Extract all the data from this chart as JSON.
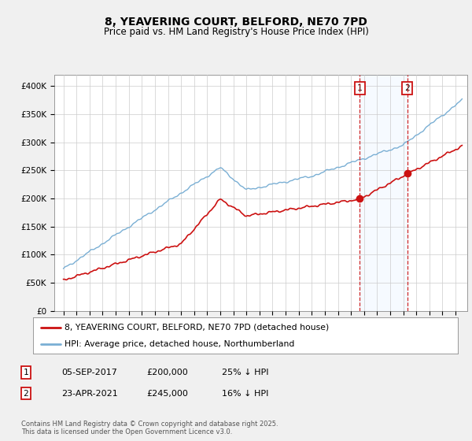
{
  "title": "8, YEAVERING COURT, BELFORD, NE70 7PD",
  "subtitle": "Price paid vs. HM Land Registry's House Price Index (HPI)",
  "ylim": [
    0,
    420000
  ],
  "yticks": [
    0,
    50000,
    100000,
    150000,
    200000,
    250000,
    300000,
    350000,
    400000
  ],
  "hpi_color": "#7aafd4",
  "price_color": "#cc1111",
  "sale1_date": "05-SEP-2017",
  "sale1_price": 200000,
  "sale1_label": "25% ↓ HPI",
  "sale1_x": 2017.67,
  "sale2_date": "23-APR-2021",
  "sale2_price": 245000,
  "sale2_label": "16% ↓ HPI",
  "sale2_x": 2021.31,
  "footnote": "Contains HM Land Registry data © Crown copyright and database right 2025.\nThis data is licensed under the Open Government Licence v3.0.",
  "legend_price_label": "8, YEAVERING COURT, BELFORD, NE70 7PD (detached house)",
  "legend_hpi_label": "HPI: Average price, detached house, Northumberland",
  "background_color": "#f0f0f0",
  "plot_bg_color": "#ffffff",
  "grid_color": "#cccccc",
  "shade_color": "#ddeeff"
}
